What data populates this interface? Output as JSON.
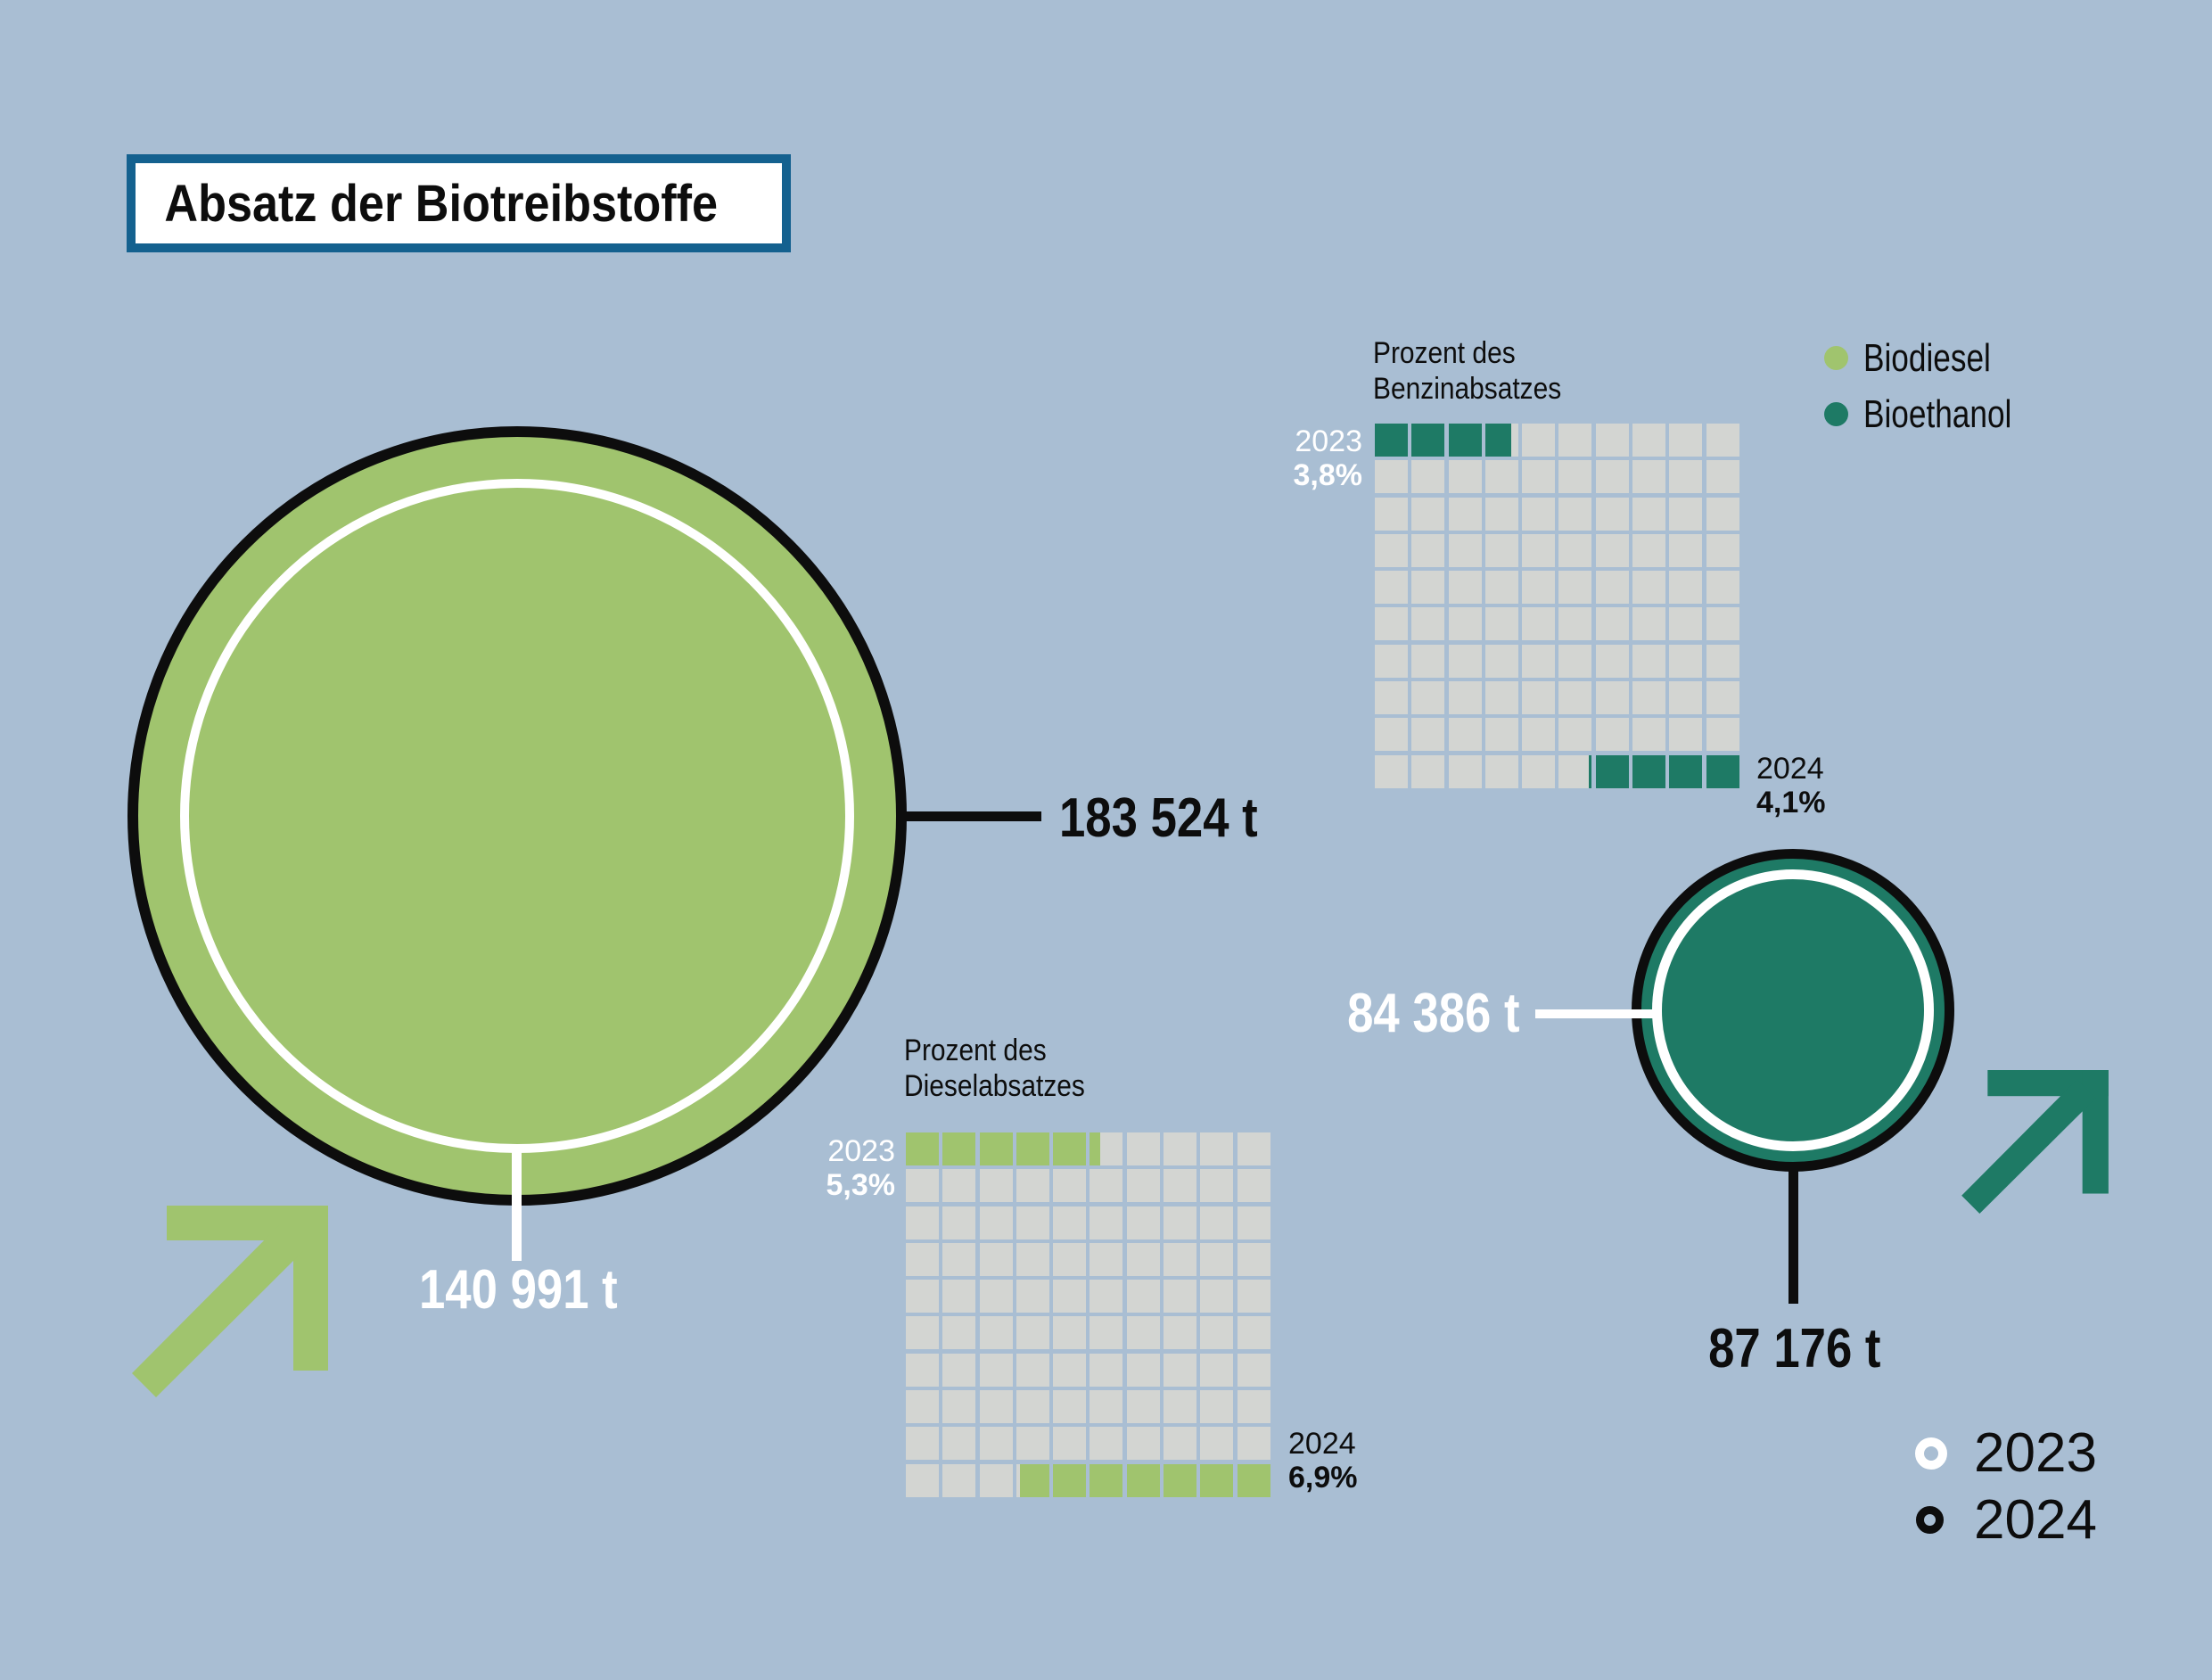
{
  "title": "Absatz der Biotreibstoffe",
  "colors": {
    "background": "#a9bed3",
    "biodiesel": "#a0c46e",
    "bioethanol": "#1e7a65",
    "waffle_empty": "#d3d5d2",
    "title_border": "#14618f",
    "black": "#0d0d0d",
    "white": "#ffffff"
  },
  "fuel_legend": {
    "biodiesel": "Biodiesel",
    "bioethanol": "Bioethanol"
  },
  "year_legend": {
    "y2023": "2023",
    "y2024": "2024"
  },
  "biodiesel": {
    "value_2024_label": "183 524 t",
    "value_2023_label": "140 991 t"
  },
  "bioethanol": {
    "value_2023_label": "84 386 t",
    "value_2024_label": "87 176 t"
  },
  "waffles": [
    {
      "id": "benzin",
      "title_line1": "Prozent des",
      "title_line2": "Benzinabsatzes",
      "year_top": "2023",
      "pct_top": "3,8%",
      "year_bottom": "2024",
      "pct_bottom": "4,1%",
      "top_value": 3.8,
      "bottom_value": 4.1,
      "fill_color": "#1e7a65"
    },
    {
      "id": "diesel",
      "title_line1": "Prozent des",
      "title_line2": "Dieselabsatzes",
      "year_top": "2023",
      "pct_top": "5,3%",
      "year_bottom": "2024",
      "pct_bottom": "6,9%",
      "top_value": 5.3,
      "bottom_value": 6.9,
      "fill_color": "#a0c46e"
    }
  ],
  "chart_data": [
    {
      "type": "proportional_circles",
      "title": "Absatz der Biotreibstoffe",
      "unit": "t",
      "series": [
        {
          "name": "Biodiesel",
          "color": "#a0c46e",
          "points": [
            {
              "year": "2023",
              "value": 140991,
              "label": "140 991 t"
            },
            {
              "year": "2024",
              "value": 183524,
              "label": "183 524 t"
            }
          ]
        },
        {
          "name": "Bioethanol",
          "color": "#1e7a65",
          "points": [
            {
              "year": "2023",
              "value": 84386,
              "label": "84 386 t"
            },
            {
              "year": "2024",
              "value": 87176,
              "label": "87 176 t"
            }
          ]
        }
      ],
      "encoding": {
        "2023": "white inner circle",
        "2024": "black outer circle"
      },
      "annotations": [
        "upward trend arrows for both fuels"
      ]
    },
    {
      "type": "waffle",
      "grid": "10x10",
      "title": "Prozent des Benzinabsatzes",
      "series": [
        {
          "name": "2023",
          "value": 3.8,
          "label": "3,8%",
          "fill_from": "top-left"
        },
        {
          "name": "2024",
          "value": 4.1,
          "label": "4,1%",
          "fill_from": "bottom-right"
        }
      ],
      "color": "#1e7a65"
    },
    {
      "type": "waffle",
      "grid": "10x10",
      "title": "Prozent des Dieselabsatzes",
      "series": [
        {
          "name": "2023",
          "value": 5.3,
          "label": "5,3%",
          "fill_from": "top-left"
        },
        {
          "name": "2024",
          "value": 6.9,
          "label": "6,9%",
          "fill_from": "bottom-right"
        }
      ],
      "color": "#a0c46e"
    }
  ]
}
